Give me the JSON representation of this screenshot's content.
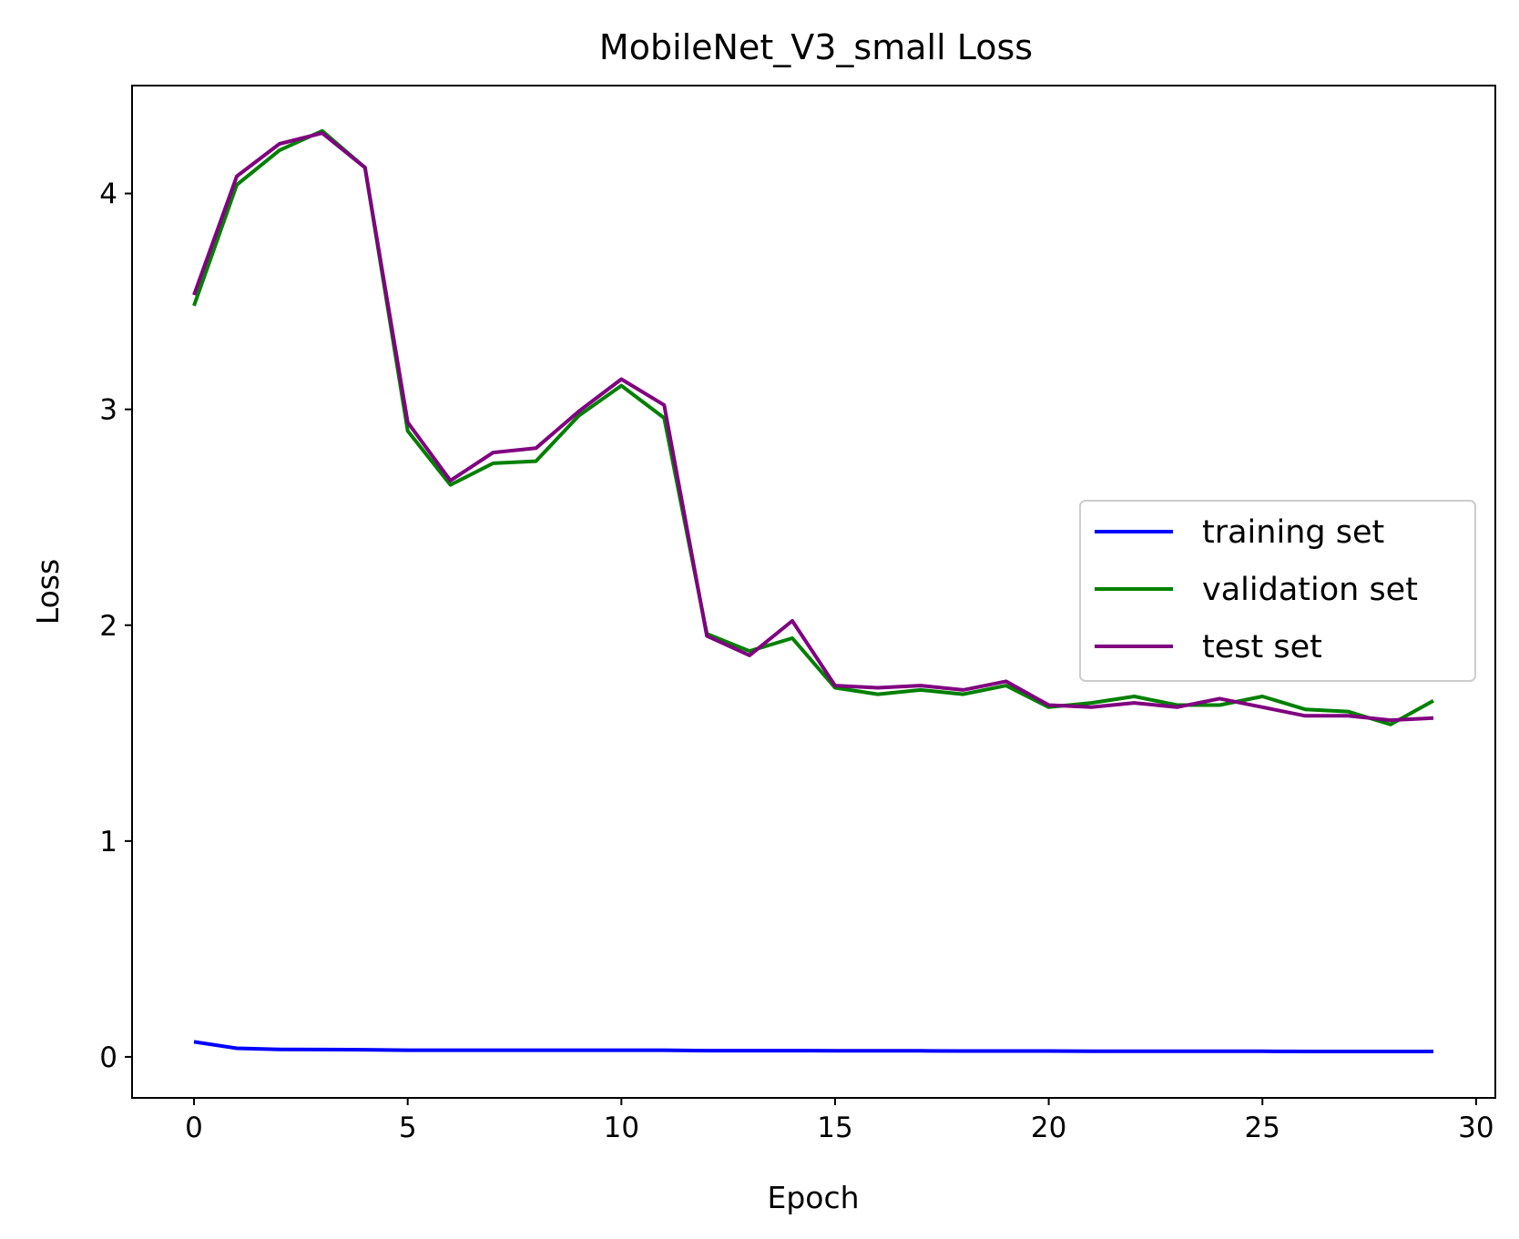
{
  "chart_data": {
    "type": "line",
    "title": "MobileNet_V3_small Loss",
    "xlabel": "Epoch",
    "ylabel": "Loss",
    "xlim": [
      -1.45,
      30.45
    ],
    "ylim": [
      -0.19,
      4.5
    ],
    "xticks": [
      0,
      5,
      10,
      15,
      20,
      25,
      30
    ],
    "yticks": [
      0,
      1,
      2,
      3,
      4
    ],
    "grid": false,
    "legend_position": "center-right",
    "x": [
      0,
      1,
      2,
      3,
      4,
      5,
      6,
      7,
      8,
      9,
      10,
      11,
      12,
      13,
      14,
      15,
      16,
      17,
      18,
      19,
      20,
      21,
      22,
      23,
      24,
      25,
      26,
      27,
      28,
      29
    ],
    "series": [
      {
        "name": "training set",
        "color": "#0000ff",
        "values": [
          0.07,
          0.04,
          0.035,
          0.034,
          0.033,
          0.031,
          0.031,
          0.031,
          0.031,
          0.031,
          0.031,
          0.031,
          0.029,
          0.029,
          0.029,
          0.028,
          0.028,
          0.028,
          0.027,
          0.027,
          0.027,
          0.026,
          0.026,
          0.026,
          0.026,
          0.026,
          0.025,
          0.025,
          0.025,
          0.025
        ]
      },
      {
        "name": "validation set",
        "color": "#008000",
        "values": [
          3.48,
          4.04,
          4.2,
          4.29,
          4.12,
          2.9,
          2.65,
          2.75,
          2.76,
          2.97,
          3.11,
          2.96,
          1.96,
          1.88,
          1.94,
          1.71,
          1.68,
          1.7,
          1.68,
          1.72,
          1.62,
          1.64,
          1.67,
          1.63,
          1.63,
          1.67,
          1.61,
          1.6,
          1.54,
          1.65
        ]
      },
      {
        "name": "test set",
        "color": "#800080",
        "values": [
          3.53,
          4.08,
          4.23,
          4.28,
          4.12,
          2.94,
          2.67,
          2.8,
          2.82,
          2.99,
          3.14,
          3.02,
          1.95,
          1.86,
          2.02,
          1.72,
          1.71,
          1.72,
          1.7,
          1.74,
          1.63,
          1.62,
          1.64,
          1.62,
          1.66,
          1.62,
          1.58,
          1.58,
          1.56,
          1.57
        ]
      }
    ]
  }
}
